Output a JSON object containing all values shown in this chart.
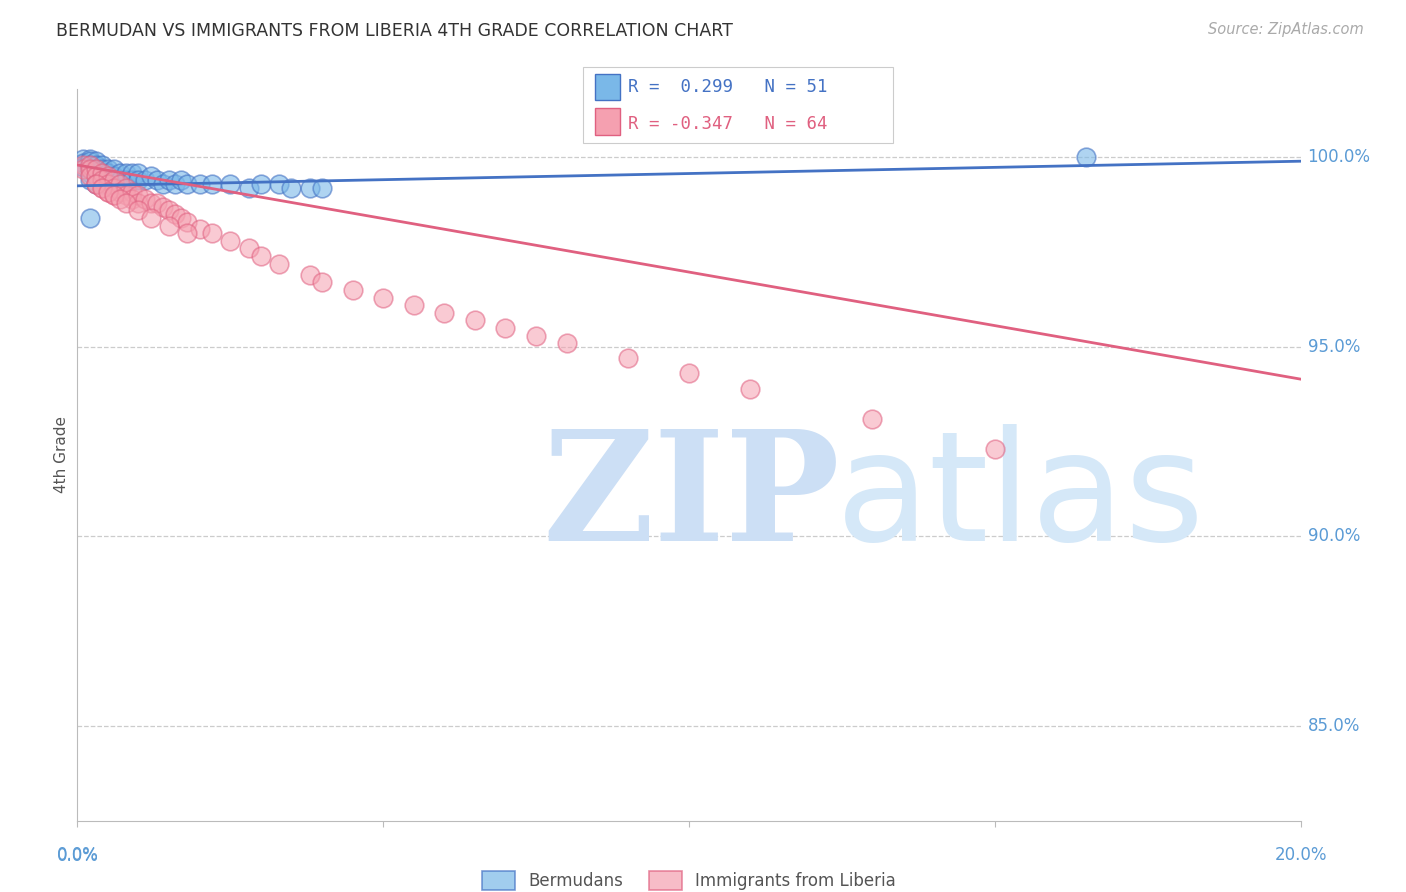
{
  "title": "BERMUDAN VS IMMIGRANTS FROM LIBERIA 4TH GRADE CORRELATION CHART",
  "source": "Source: ZipAtlas.com",
  "ylabel": "4th Grade",
  "ytick_labels": [
    "85.0%",
    "90.0%",
    "95.0%",
    "100.0%"
  ],
  "ytick_values": [
    0.85,
    0.9,
    0.95,
    1.0
  ],
  "xlim": [
    0.0,
    0.2
  ],
  "ylim": [
    0.825,
    1.018
  ],
  "blue_R": 0.299,
  "blue_N": 51,
  "pink_R": -0.347,
  "pink_N": 64,
  "blue_color": "#7ab8e8",
  "pink_color": "#f5a0b0",
  "blue_line_color": "#4472c4",
  "pink_line_color": "#e06080",
  "grid_color": "#cccccc",
  "title_color": "#333333",
  "axis_color": "#5b9bd5",
  "watermark_zip_color": "#ccdff5",
  "watermark_atlas_color": "#d5e8f8",
  "legend_label_blue": "Bermudans",
  "legend_label_pink": "Immigrants from Liberia",
  "blue_line_x": [
    0.0,
    0.2
  ],
  "blue_line_y": [
    0.9925,
    0.999
  ],
  "pink_line_x": [
    0.0,
    0.2
  ],
  "pink_line_y": [
    0.998,
    0.9415
  ],
  "blue_x": [
    0.001,
    0.001,
    0.001,
    0.002,
    0.002,
    0.002,
    0.002,
    0.002,
    0.002,
    0.003,
    0.003,
    0.003,
    0.003,
    0.003,
    0.004,
    0.004,
    0.004,
    0.004,
    0.005,
    0.005,
    0.005,
    0.006,
    0.006,
    0.006,
    0.007,
    0.007,
    0.008,
    0.008,
    0.009,
    0.009,
    0.01,
    0.01,
    0.011,
    0.012,
    0.013,
    0.014,
    0.015,
    0.016,
    0.017,
    0.018,
    0.02,
    0.022,
    0.025,
    0.028,
    0.03,
    0.033,
    0.035,
    0.038,
    0.04,
    0.165,
    0.002
  ],
  "blue_y": [
    0.9995,
    0.9985,
    0.9975,
    0.9995,
    0.999,
    0.998,
    0.997,
    0.996,
    0.994,
    0.999,
    0.998,
    0.997,
    0.995,
    0.993,
    0.998,
    0.997,
    0.995,
    0.993,
    0.997,
    0.996,
    0.994,
    0.997,
    0.995,
    0.993,
    0.996,
    0.994,
    0.996,
    0.994,
    0.996,
    0.994,
    0.996,
    0.994,
    0.994,
    0.995,
    0.994,
    0.993,
    0.994,
    0.993,
    0.994,
    0.993,
    0.993,
    0.993,
    0.993,
    0.992,
    0.993,
    0.993,
    0.992,
    0.992,
    0.992,
    1.0,
    0.984
  ],
  "pink_x": [
    0.001,
    0.001,
    0.002,
    0.002,
    0.002,
    0.003,
    0.003,
    0.003,
    0.004,
    0.004,
    0.004,
    0.005,
    0.005,
    0.005,
    0.006,
    0.006,
    0.006,
    0.007,
    0.007,
    0.008,
    0.008,
    0.009,
    0.009,
    0.01,
    0.01,
    0.011,
    0.012,
    0.013,
    0.014,
    0.015,
    0.016,
    0.017,
    0.018,
    0.02,
    0.022,
    0.025,
    0.028,
    0.03,
    0.033,
    0.038,
    0.04,
    0.045,
    0.05,
    0.055,
    0.06,
    0.065,
    0.07,
    0.075,
    0.08,
    0.09,
    0.1,
    0.11,
    0.13,
    0.15,
    0.003,
    0.004,
    0.005,
    0.006,
    0.007,
    0.008,
    0.01,
    0.012,
    0.015,
    0.018
  ],
  "pink_y": [
    0.998,
    0.997,
    0.998,
    0.997,
    0.995,
    0.997,
    0.995,
    0.993,
    0.996,
    0.994,
    0.992,
    0.995,
    0.993,
    0.991,
    0.994,
    0.992,
    0.99,
    0.993,
    0.991,
    0.992,
    0.99,
    0.991,
    0.989,
    0.99,
    0.988,
    0.989,
    0.988,
    0.988,
    0.987,
    0.986,
    0.985,
    0.984,
    0.983,
    0.981,
    0.98,
    0.978,
    0.976,
    0.974,
    0.972,
    0.969,
    0.967,
    0.965,
    0.963,
    0.961,
    0.959,
    0.957,
    0.955,
    0.953,
    0.951,
    0.947,
    0.943,
    0.939,
    0.931,
    0.923,
    0.993,
    0.992,
    0.991,
    0.99,
    0.989,
    0.988,
    0.986,
    0.984,
    0.982,
    0.98
  ]
}
